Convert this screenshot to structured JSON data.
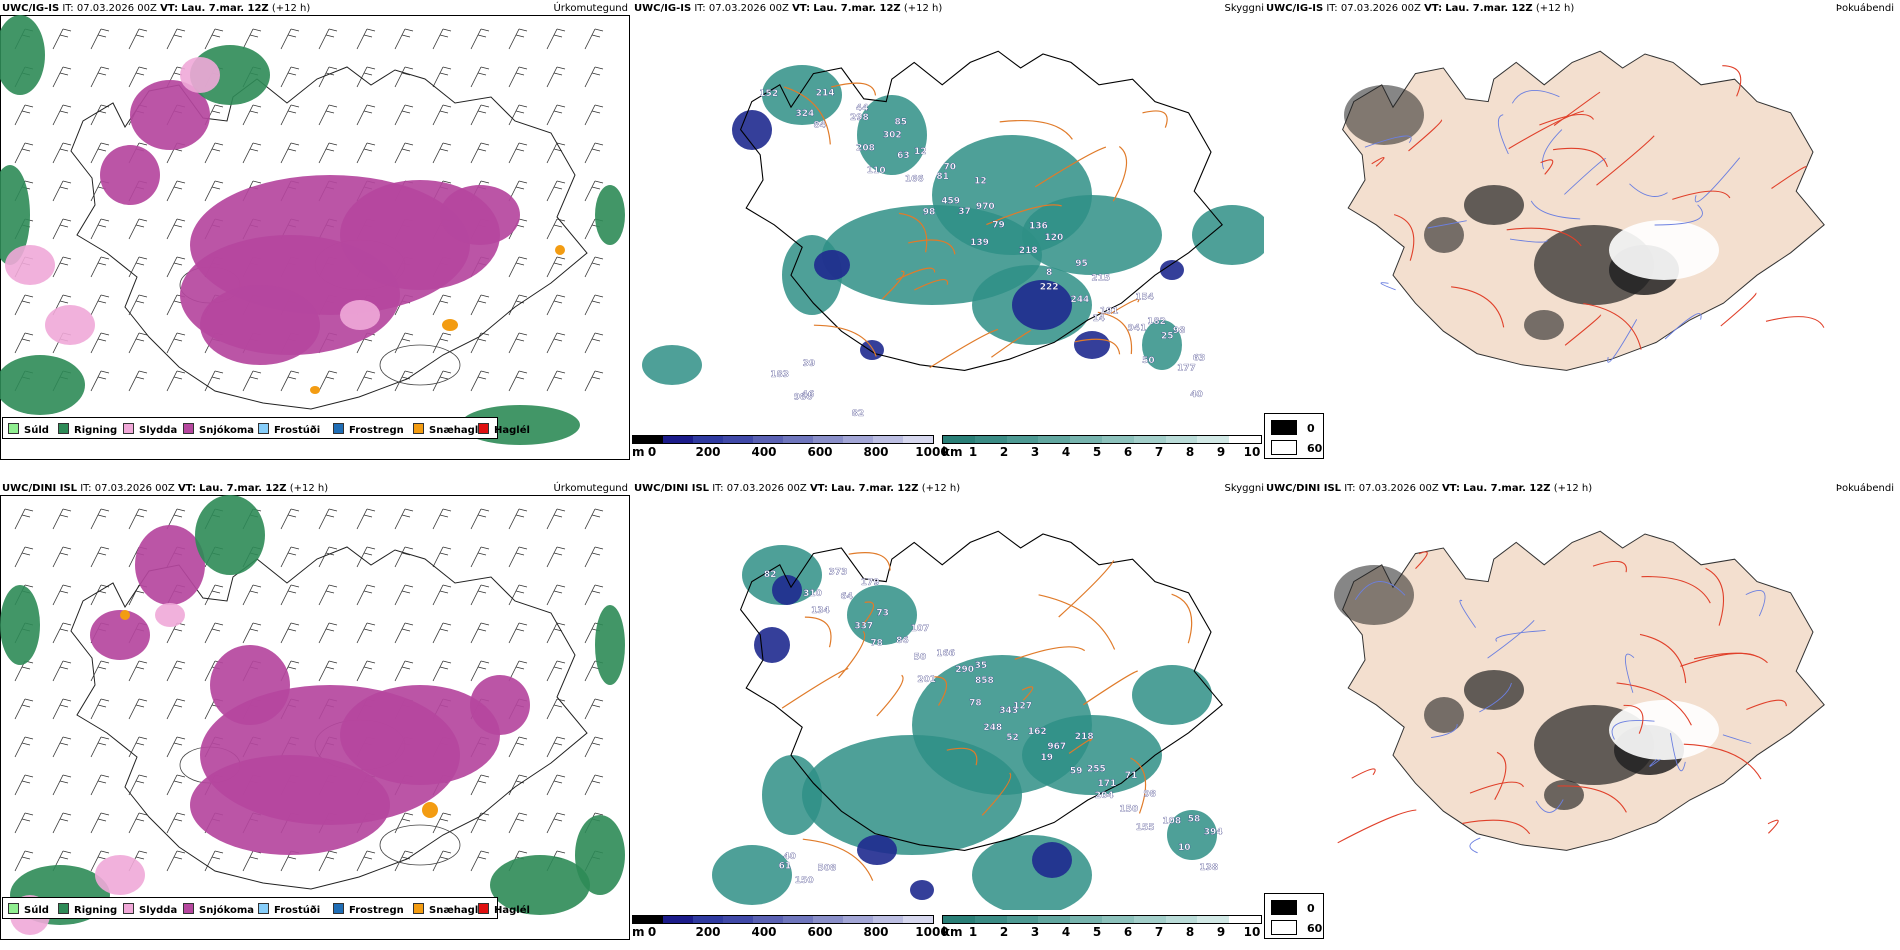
{
  "panels": [
    {
      "id": "r1c1",
      "title": {
        "model": "UWC/IG-IS",
        "it": "IT: 07.03.2026 00Z",
        "vt_label": "VT:",
        "vt": "Lau. 7.mar. 12Z",
        "lead": "(+12 h)"
      },
      "field": "Úrkomutegund"
    },
    {
      "id": "r1c2",
      "title": {
        "model": "UWC/IG-IS",
        "it": "IT: 07.03.2026 00Z",
        "vt_label": "VT:",
        "vt": "Lau. 7.mar. 12Z",
        "lead": "(+12 h)"
      },
      "field": "Skyggni"
    },
    {
      "id": "r1c3",
      "title": {
        "model": "UWC/IG-IS",
        "it": "IT: 07.03.2026 00Z",
        "vt_label": "VT:",
        "vt": "Lau. 7.mar. 12Z",
        "lead": "(+12 h)"
      },
      "field": "Þokuábendi"
    },
    {
      "id": "r2c1",
      "title": {
        "model": "UWC/DINI ISL",
        "it": "IT: 07.03.2026 00Z",
        "vt_label": "VT:",
        "vt": "Lau. 7.mar. 12Z",
        "lead": "(+12 h)"
      },
      "field": "Úrkomutegund"
    },
    {
      "id": "r2c2",
      "title": {
        "model": "UWC/DINI ISL",
        "it": "IT: 07.03.2026 00Z",
        "vt_label": "VT:",
        "vt": "Lau. 7.mar. 12Z",
        "lead": "(+12 h)"
      },
      "field": "Skyggni"
    },
    {
      "id": "r2c3",
      "title": {
        "model": "UWC/DINI ISL",
        "it": "IT: 07.03.2026 00Z",
        "vt_label": "VT:",
        "vt": "Lau. 7.mar. 12Z",
        "lead": "(+12 h)"
      },
      "field": "Þokuábendi"
    }
  ],
  "precip_legend": [
    {
      "label": "Súld",
      "color": "#90ee90"
    },
    {
      "label": "Rigning",
      "color": "#2e8b57"
    },
    {
      "label": "Slydda",
      "color": "#f0a8d8"
    },
    {
      "label": "Snjókoma",
      "color": "#b5479e"
    },
    {
      "label": "Frostúði",
      "color": "#87cefa"
    },
    {
      "label": "Frostregn",
      "color": "#1f6db5"
    },
    {
      "label": "Snæhagl",
      "color": "#f39c12"
    },
    {
      "label": "Haglél",
      "color": "#e01010"
    }
  ],
  "vis_scale_m": {
    "unit": "m",
    "ticks": [
      "0",
      "200",
      "400",
      "600",
      "800",
      "1000"
    ]
  },
  "vis_scale_km": {
    "unit": "km",
    "ticks": [
      "1",
      "2",
      "3",
      "4",
      "5",
      "6",
      "7",
      "8",
      "9",
      "10"
    ]
  },
  "fog_legend": {
    "black": "0",
    "white": "60"
  },
  "vis_labels": {
    "r1": [
      "152",
      "84",
      "110",
      "98",
      "139",
      "222",
      "14",
      "50",
      "40",
      "324",
      "208",
      "166",
      "37",
      "218",
      "244",
      "941",
      "177",
      "986",
      "298",
      "63",
      "459",
      "79",
      "8",
      "191",
      "25",
      "183",
      "214",
      "302",
      "81",
      "970",
      "120",
      "215",
      "182",
      "63",
      "46",
      "44",
      "12",
      "12",
      "136",
      "95",
      "154",
      "98",
      "39",
      "82",
      "85",
      "70"
    ],
    "r2": [
      "82",
      "134",
      "78",
      "201",
      "248",
      "19",
      "204",
      "155",
      "138",
      "310",
      "337",
      "50",
      "78",
      "52",
      "59",
      "150",
      "10",
      "150",
      "64",
      "86",
      "290",
      "343",
      "967",
      "171",
      "108",
      "61",
      "373",
      "73",
      "166",
      "858",
      "162",
      "255",
      "98",
      "394",
      "508",
      "179",
      "107",
      "35",
      "127",
      "218",
      "71",
      "58",
      "40"
    ]
  }
}
